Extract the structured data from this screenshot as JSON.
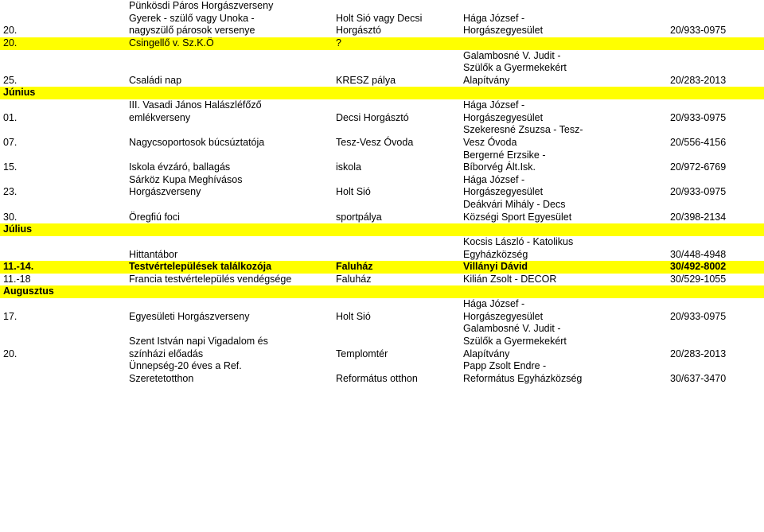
{
  "rows": [
    {
      "c0": "",
      "c1": "Pünkösdi Páros Horgászverseny",
      "c2": "",
      "c3": "",
      "c4": ""
    },
    {
      "c0": "",
      "c1": "Gyerek - szülő vagy Unoka -",
      "c2": "Holt Sió vagy Decsi",
      "c3": "Hága József -",
      "c4": ""
    },
    {
      "c0": "20.",
      "c1": "nagyszülő párosok versenye",
      "c2": "Horgásztó",
      "c3": "Horgászegyesület",
      "c4": "20/933-0975"
    },
    {
      "c0": "",
      "c1": "",
      "c2": "",
      "c3": "",
      "c4": "",
      "yellow": true
    },
    {
      "c0": "20.",
      "c1": "Csingellő v. Sz.K.Ö",
      "c2": "?",
      "c3": "",
      "c4": "",
      "yellow": true
    },
    {
      "c0": "",
      "c1": "",
      "c2": "",
      "c3": "Galambosné V. Judit -",
      "c4": ""
    },
    {
      "c0": "",
      "c1": "",
      "c2": "",
      "c3": "Szülők a Gyermekekért",
      "c4": ""
    },
    {
      "c0": "25.",
      "c1": "Családi nap",
      "c2": "KRESZ pálya",
      "c3": "Alapítvány",
      "c4": "20/283-2013"
    },
    {
      "c0": "Június",
      "c1": "",
      "c2": "",
      "c3": "",
      "c4": "",
      "yellow": true,
      "month": true
    },
    {
      "c0": "",
      "c1": "III. Vasadi János Halászléfőző",
      "c2": "",
      "c3": "Hága József -",
      "c4": ""
    },
    {
      "c0": "01.",
      "c1": "emlékverseny",
      "c2": "Decsi Horgásztó",
      "c3": "Horgászegyesület",
      "c4": "20/933-0975"
    },
    {
      "c0": "",
      "c1": "",
      "c2": "",
      "c3": "Szekeresné Zsuzsa - Tesz-",
      "c4": ""
    },
    {
      "c0": "07.",
      "c1": "Nagycsoportosok búcsúztatója",
      "c2": "Tesz-Vesz Óvoda",
      "c3": "Vesz Óvoda",
      "c4": "20/556-4156"
    },
    {
      "c0": "",
      "c1": "",
      "c2": "",
      "c3": "Bergerné Erzsike -",
      "c4": ""
    },
    {
      "c0": "15.",
      "c1": "Iskola évzáró, ballagás",
      "c2": "iskola",
      "c3": "Bíborvég Ált.Isk.",
      "c4": "20/972-6769"
    },
    {
      "c0": "",
      "c1": "Sárköz Kupa Meghívásos",
      "c2": "",
      "c3": "Hága József -",
      "c4": ""
    },
    {
      "c0": "23.",
      "c1": "Horgászverseny",
      "c2": "Holt Sió",
      "c3": "Horgászegyesület",
      "c4": "20/933-0975"
    },
    {
      "c0": "",
      "c1": "",
      "c2": "",
      "c3": "Deákvári Mihály - Decs",
      "c4": ""
    },
    {
      "c0": "30.",
      "c1": "Öregfiú foci",
      "c2": "sportpálya",
      "c3": "Községi Sport Egyesület",
      "c4": "20/398-2134"
    },
    {
      "c0": "Július",
      "c1": "",
      "c2": "",
      "c3": "",
      "c4": "",
      "yellow": true,
      "month": true
    },
    {
      "c0": "",
      "c1": "",
      "c2": "",
      "c3": "Kocsis László - Katolikus",
      "c4": ""
    },
    {
      "c0": "",
      "c1": "Hittantábor",
      "c2": "",
      "c3": "Egyházközség",
      "c4": "30/448-4948"
    },
    {
      "c0": "",
      "c1": "",
      "c2": "",
      "c3": "",
      "c4": "",
      "yellow": true
    },
    {
      "c0": "11.-14.",
      "c1": "Testvértelepülések találkozója",
      "c2": "Faluház",
      "c3": "Villányi Dávid",
      "c4": "30/492-8002",
      "yellow": true,
      "bold": true
    },
    {
      "c0": "",
      "c1": "",
      "c2": "",
      "c3": "",
      "c4": "",
      "yellow": true
    },
    {
      "c0": "11.-18",
      "c1": "Francia testvértelepülés vendégsége",
      "c2": "Faluház",
      "c3": "Kilián Zsolt - DECOR",
      "c4": "30/529-1055"
    },
    {
      "c0": "Augusztus",
      "c1": "",
      "c2": "",
      "c3": "",
      "c4": "",
      "yellow": true,
      "month": true
    },
    {
      "c0": "",
      "c1": "",
      "c2": "",
      "c3": "Hága József -",
      "c4": ""
    },
    {
      "c0": "17.",
      "c1": "Egyesületi Horgászverseny",
      "c2": "Holt Sió",
      "c3": "Horgászegyesület",
      "c4": "20/933-0975"
    },
    {
      "c0": "",
      "c1": "",
      "c2": "",
      "c3": "",
      "c4": ""
    },
    {
      "c0": "",
      "c1": "",
      "c2": "",
      "c3": "Galambosné V. Judit -",
      "c4": ""
    },
    {
      "c0": "",
      "c1": "Szent István napi Vigadalom és",
      "c2": "",
      "c3": "Szülők a Gyermekekért",
      "c4": ""
    },
    {
      "c0": "20.",
      "c1": "színházi előadás",
      "c2": "Templomtér",
      "c3": "Alapítvány",
      "c4": "20/283-2013"
    },
    {
      "c0": "",
      "c1": "",
      "c2": "",
      "c3": "",
      "c4": ""
    },
    {
      "c0": "",
      "c1": "Ünnepség-20 éves a Ref.",
      "c2": "",
      "c3": "Papp Zsolt Endre -",
      "c4": ""
    },
    {
      "c0": "",
      "c1": "Szeretetotthon",
      "c2": "Református otthon",
      "c3": "Református Egyházközség",
      "c4": "30/637-3470"
    }
  ]
}
